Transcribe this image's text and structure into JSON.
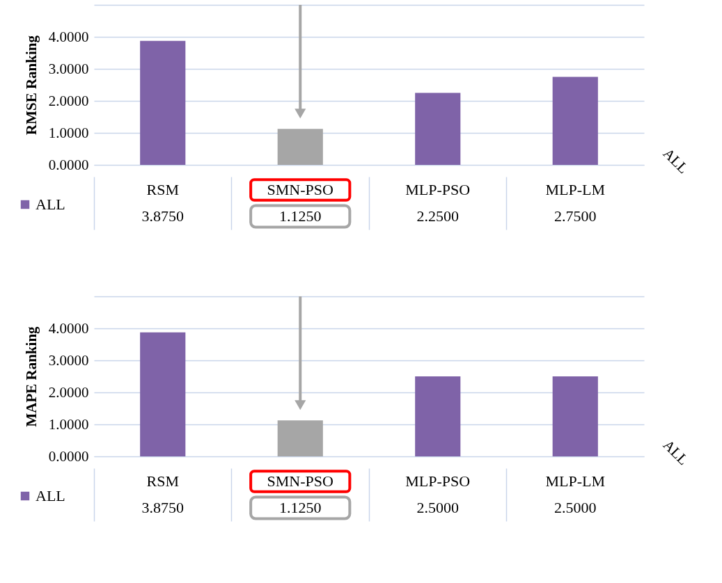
{
  "chart_data": [
    {
      "type": "bar",
      "ylabel": "RMSE Ranking",
      "categories": [
        "RSM",
        "SMN-PSO",
        "MLP-PSO",
        "MLP-LM"
      ],
      "series": [
        {
          "name": "ALL",
          "color": "#7f63a8",
          "colors": [
            "#7f63a8",
            "#a6a6a6",
            "#7f63a8",
            "#7f63a8"
          ],
          "values": [
            3.875,
            1.125,
            2.25,
            2.75
          ],
          "value_labels": [
            "3.8750",
            "1.1250",
            "2.2500",
            "2.7500"
          ]
        }
      ],
      "ylim": [
        0,
        5
      ],
      "yticks": [
        {
          "value": 0,
          "label": "0.0000"
        },
        {
          "value": 1,
          "label": "1.0000"
        },
        {
          "value": 2,
          "label": "2.0000"
        },
        {
          "value": 3,
          "label": "3.0000"
        },
        {
          "value": 4,
          "label": "4.0000"
        },
        {
          "value": 5,
          "label": null
        }
      ],
      "grid": "y",
      "legend": "bottom left",
      "annotations": [
        "ALL"
      ]
    },
    {
      "type": "bar",
      "ylabel": "MAPE Ranking",
      "categories": [
        "RSM",
        "SMN-PSO",
        "MLP-PSO",
        "MLP-LM"
      ],
      "series": [
        {
          "name": "ALL",
          "color": "#7f63a8",
          "colors": [
            "#7f63a8",
            "#a6a6a6",
            "#7f63a8",
            "#7f63a8"
          ],
          "values": [
            3.875,
            1.125,
            2.5,
            2.5
          ],
          "value_labels": [
            "3.8750",
            "1.1250",
            "2.5000",
            "2.5000"
          ]
        }
      ],
      "ylim": [
        0,
        5
      ],
      "yticks": [
        {
          "value": 0,
          "label": "0.0000"
        },
        {
          "value": 1,
          "label": "1.0000"
        },
        {
          "value": 2,
          "label": "2.0000"
        },
        {
          "value": 3,
          "label": "3.0000"
        },
        {
          "value": 4,
          "label": "4.0000"
        },
        {
          "value": 5,
          "label": null
        }
      ],
      "grid": "y",
      "legend": "bottom left",
      "annotations": [
        "ALL"
      ]
    }
  ]
}
